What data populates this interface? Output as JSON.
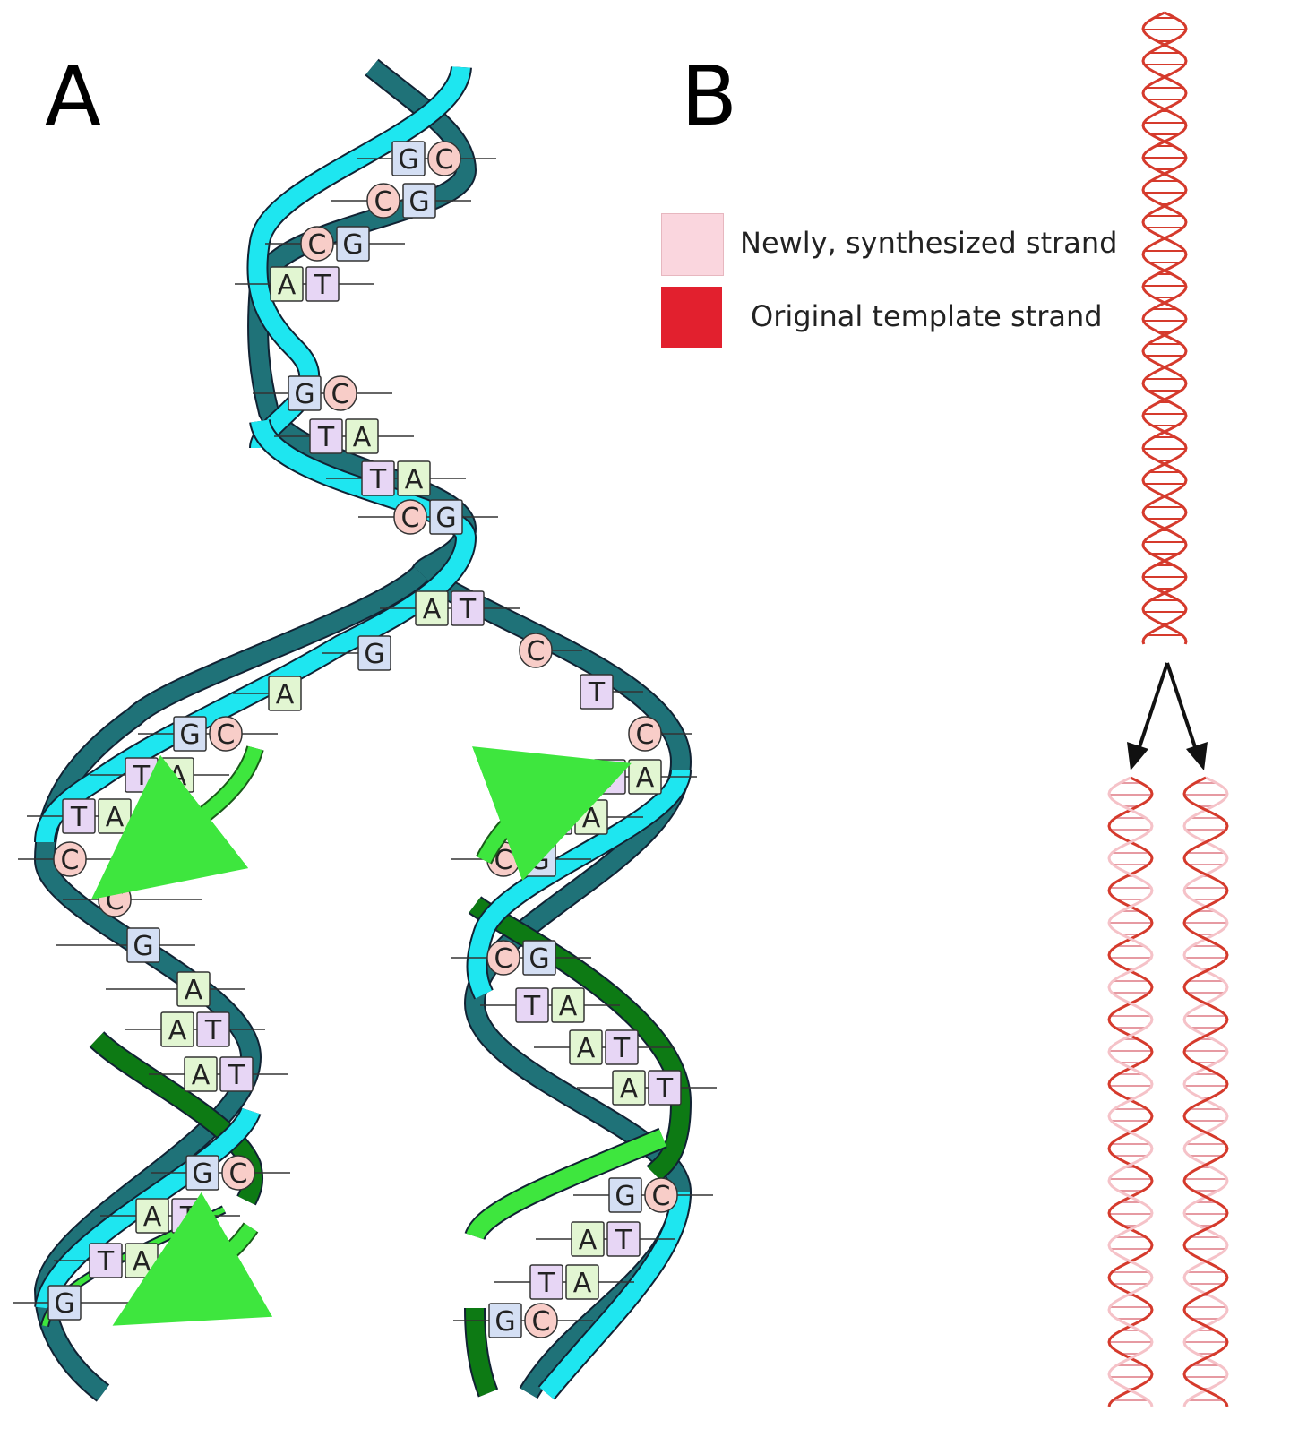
{
  "panels": {
    "a_label": "A",
    "b_label": "B"
  },
  "legend": {
    "new_strand_label": "Newly, synthesized strand",
    "template_strand_label": "Original template strand"
  },
  "colors": {
    "template_strand_dark": "#1f7278",
    "template_strand_light": "#1ee6f0",
    "new_strand_bright": "#3ee63e",
    "new_strand_dark": "#0d7a14",
    "base_G": "#d4dff4",
    "base_C": "#f8cdc8",
    "base_T": "#e7d6f5",
    "base_A": "#e2f6d2",
    "legend_new": "#fad6de",
    "legend_template": "#e2202e",
    "helix_red": "#d53a2c",
    "helix_pink": "#f5c2c8"
  },
  "base_pairs": {
    "parent": [
      [
        "G",
        "C"
      ],
      [
        "C",
        "G"
      ],
      [
        "C",
        "G"
      ],
      [
        "A",
        "T"
      ],
      [
        "G",
        "C"
      ],
      [
        "T",
        "A"
      ],
      [
        "T",
        "A"
      ],
      [
        "C",
        "G"
      ]
    ],
    "fork": [
      [
        "A",
        "T"
      ]
    ],
    "left_unpaired": [
      "G",
      "A"
    ],
    "right_unpaired": [
      "C",
      "T",
      "C"
    ],
    "left_daughter": [
      [
        "G",
        "C"
      ],
      [
        "T",
        "A"
      ],
      [
        "T",
        "A"
      ],
      [
        "C",
        ""
      ],
      [
        "C",
        ""
      ],
      [
        "",
        "G"
      ],
      [
        "",
        "A"
      ],
      [
        "A",
        "T"
      ],
      [
        "A",
        "T"
      ],
      [
        "G",
        "C"
      ],
      [
        "A",
        "T"
      ],
      [
        "T",
        "A"
      ],
      [
        "G",
        ""
      ]
    ],
    "right_daughter": [
      [
        "T",
        "A"
      ],
      [
        "T",
        "A"
      ],
      [
        "C",
        "G"
      ],
      [
        "C",
        "G"
      ],
      [
        "T",
        "A"
      ],
      [
        "A",
        "T"
      ],
      [
        "A",
        "T"
      ],
      [
        "G",
        "C"
      ],
      [
        "A",
        "T"
      ],
      [
        "T",
        "A"
      ],
      [
        "G",
        "C"
      ]
    ]
  }
}
